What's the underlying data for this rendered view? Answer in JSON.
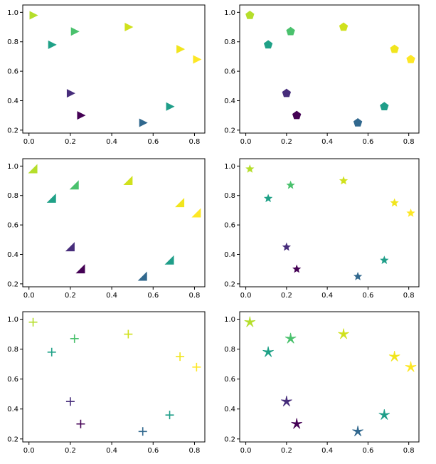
{
  "figure": {
    "background": "#ffffff"
  },
  "chart_data": [
    {
      "type": "scatter",
      "marker": "triangle-right",
      "x": [
        0.02,
        0.11,
        0.22,
        0.48,
        0.73,
        0.81,
        0.2,
        0.25,
        0.55,
        0.68
      ],
      "y": [
        0.98,
        0.78,
        0.87,
        0.9,
        0.75,
        0.68,
        0.45,
        0.3,
        0.25,
        0.36
      ],
      "colors": [
        "#b5de2b",
        "#1fa187",
        "#4ac16d",
        "#d0e11c",
        "#f1e51d",
        "#fde725",
        "#472d7b",
        "#440154",
        "#31688e",
        "#1f9e89"
      ],
      "xlim": [
        -0.03,
        0.85
      ],
      "ylim": [
        0.18,
        1.05
      ],
      "xticks": [
        "0.0",
        "0.2",
        "0.4",
        "0.6",
        "0.8"
      ],
      "yticks": [
        "0.2",
        "0.4",
        "0.6",
        "0.8",
        "1.0"
      ],
      "grid": false
    },
    {
      "type": "scatter",
      "marker": "pentagon",
      "x": [
        0.02,
        0.11,
        0.22,
        0.48,
        0.73,
        0.81,
        0.2,
        0.25,
        0.55,
        0.68
      ],
      "y": [
        0.98,
        0.78,
        0.87,
        0.9,
        0.75,
        0.68,
        0.45,
        0.3,
        0.25,
        0.36
      ],
      "colors": [
        "#b5de2b",
        "#1fa187",
        "#4ac16d",
        "#d0e11c",
        "#f1e51d",
        "#fde725",
        "#472d7b",
        "#440154",
        "#31688e",
        "#1f9e89"
      ],
      "xlim": [
        -0.03,
        0.85
      ],
      "ylim": [
        0.18,
        1.05
      ],
      "xticks": [
        "0.0",
        "0.2",
        "0.4",
        "0.6",
        "0.8"
      ],
      "yticks": [
        "0.2",
        "0.4",
        "0.6",
        "0.8",
        "1.0"
      ],
      "grid": false
    },
    {
      "type": "scatter",
      "marker": "triangle-corner",
      "x": [
        0.02,
        0.11,
        0.22,
        0.48,
        0.73,
        0.81,
        0.2,
        0.25,
        0.55,
        0.68
      ],
      "y": [
        0.98,
        0.78,
        0.87,
        0.9,
        0.75,
        0.68,
        0.45,
        0.3,
        0.25,
        0.36
      ],
      "colors": [
        "#b5de2b",
        "#1fa187",
        "#4ac16d",
        "#d0e11c",
        "#f1e51d",
        "#fde725",
        "#472d7b",
        "#440154",
        "#31688e",
        "#1f9e89"
      ],
      "xlim": [
        -0.03,
        0.85
      ],
      "ylim": [
        0.18,
        1.05
      ],
      "xticks": [
        "0.0",
        "0.2",
        "0.4",
        "0.6",
        "0.8"
      ],
      "yticks": [
        "0.2",
        "0.4",
        "0.6",
        "0.8",
        "1.0"
      ],
      "grid": false
    },
    {
      "type": "scatter",
      "marker": "star",
      "x": [
        0.02,
        0.11,
        0.22,
        0.48,
        0.73,
        0.81,
        0.2,
        0.25,
        0.55,
        0.68
      ],
      "y": [
        0.98,
        0.78,
        0.87,
        0.9,
        0.75,
        0.68,
        0.45,
        0.3,
        0.25,
        0.36
      ],
      "colors": [
        "#b5de2b",
        "#1fa187",
        "#4ac16d",
        "#d0e11c",
        "#f1e51d",
        "#fde725",
        "#472d7b",
        "#440154",
        "#31688e",
        "#1f9e89"
      ],
      "xlim": [
        -0.03,
        0.85
      ],
      "ylim": [
        0.18,
        1.05
      ],
      "xticks": [
        "0.0",
        "0.2",
        "0.4",
        "0.6",
        "0.8"
      ],
      "yticks": [
        "0.2",
        "0.4",
        "0.6",
        "0.8",
        "1.0"
      ],
      "grid": false
    },
    {
      "type": "scatter",
      "marker": "plus",
      "x": [
        0.02,
        0.11,
        0.22,
        0.48,
        0.73,
        0.81,
        0.2,
        0.25,
        0.55,
        0.68
      ],
      "y": [
        0.98,
        0.78,
        0.87,
        0.9,
        0.75,
        0.68,
        0.45,
        0.3,
        0.25,
        0.36
      ],
      "colors": [
        "#b5de2b",
        "#1fa187",
        "#4ac16d",
        "#d0e11c",
        "#f1e51d",
        "#fde725",
        "#472d7b",
        "#440154",
        "#31688e",
        "#1f9e89"
      ],
      "xlim": [
        -0.03,
        0.85
      ],
      "ylim": [
        0.18,
        1.05
      ],
      "xticks": [
        "0.0",
        "0.2",
        "0.4",
        "0.6",
        "0.8"
      ],
      "yticks": [
        "0.2",
        "0.4",
        "0.6",
        "0.8",
        "1.0"
      ],
      "grid": false
    },
    {
      "type": "scatter",
      "marker": "asterisk-star",
      "x": [
        0.02,
        0.11,
        0.22,
        0.48,
        0.73,
        0.81,
        0.2,
        0.25,
        0.55,
        0.68
      ],
      "y": [
        0.98,
        0.78,
        0.87,
        0.9,
        0.75,
        0.68,
        0.45,
        0.3,
        0.25,
        0.36
      ],
      "colors": [
        "#b5de2b",
        "#1fa187",
        "#4ac16d",
        "#d0e11c",
        "#f1e51d",
        "#fde725",
        "#472d7b",
        "#440154",
        "#31688e",
        "#1f9e89"
      ],
      "xlim": [
        -0.03,
        0.85
      ],
      "ylim": [
        0.18,
        1.05
      ],
      "xticks": [
        "0.0",
        "0.2",
        "0.4",
        "0.6",
        "0.8"
      ],
      "yticks": [
        "0.2",
        "0.4",
        "0.6",
        "0.8",
        "1.0"
      ],
      "grid": false
    }
  ]
}
